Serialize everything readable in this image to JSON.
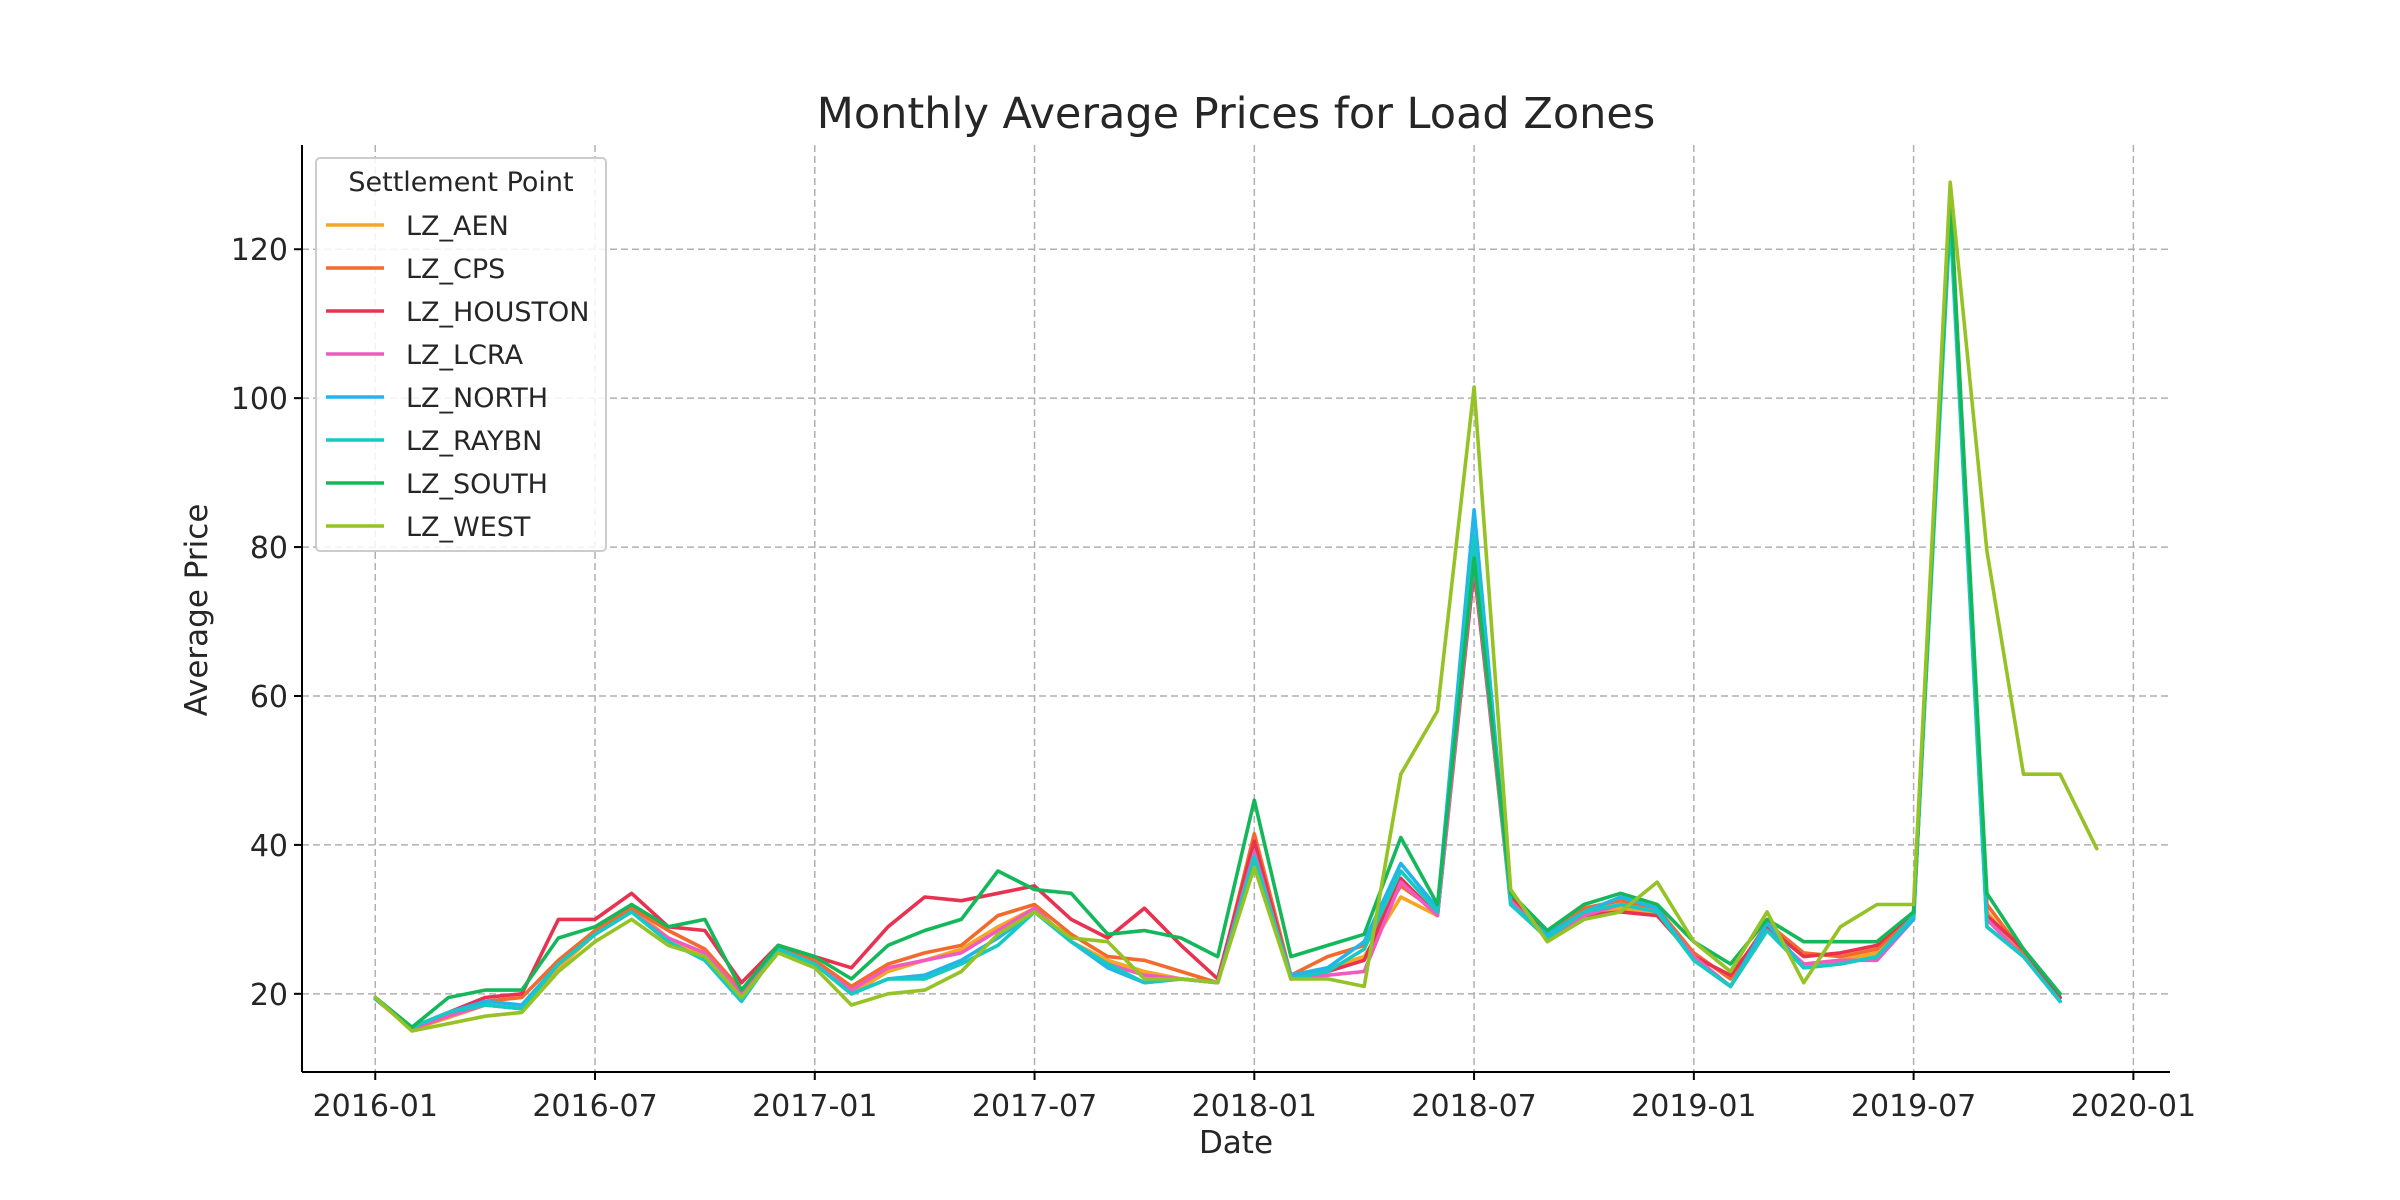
{
  "chart_data": {
    "type": "line",
    "title": "Monthly Average Prices for Load Zones",
    "xlabel": "Date",
    "ylabel": "Average Price",
    "xlim": [
      "2015-11",
      "2020-02"
    ],
    "ylim": [
      9.5,
      134
    ],
    "grid": true,
    "legend": {
      "title": "Settlement Point",
      "placement": "top-left"
    },
    "x_ticks": [
      "2016-01",
      "2016-07",
      "2017-01",
      "2017-07",
      "2018-01",
      "2018-07",
      "2019-01",
      "2019-07",
      "2020-01"
    ],
    "y_ticks": [
      20,
      40,
      60,
      80,
      100,
      120
    ],
    "x": [
      "2016-01",
      "2016-02",
      "2016-03",
      "2016-04",
      "2016-05",
      "2016-06",
      "2016-07",
      "2016-08",
      "2016-09",
      "2016-10",
      "2016-11",
      "2016-12",
      "2017-01",
      "2017-02",
      "2017-03",
      "2017-04",
      "2017-05",
      "2017-06",
      "2017-07",
      "2017-08",
      "2017-09",
      "2017-10",
      "2017-11",
      "2017-12",
      "2018-01",
      "2018-02",
      "2018-03",
      "2018-04",
      "2018-05",
      "2018-06",
      "2018-07",
      "2018-08",
      "2018-09",
      "2018-10",
      "2018-11",
      "2018-12",
      "2019-01",
      "2019-02",
      "2019-03",
      "2019-04",
      "2019-05",
      "2019-06",
      "2019-07",
      "2019-08",
      "2019-09",
      "2019-10",
      "2019-11",
      "2019-12"
    ],
    "series": [
      {
        "name": "LZ_AEN",
        "color": "#f5a623",
        "values": [
          19.3,
          15.2,
          16.8,
          18.5,
          18.0,
          23.5,
          28.0,
          31.5,
          27.5,
          25.0,
          20.0,
          26.0,
          24.0,
          20.0,
          23.0,
          24.5,
          26.0,
          29.0,
          31.5,
          27.0,
          24.5,
          23.0,
          22.0,
          21.5,
          39.0,
          22.0,
          23.5,
          25.0,
          33.0,
          30.5,
          78.0,
          32.0,
          27.5,
          30.5,
          31.5,
          30.5,
          25.0,
          21.0,
          28.5,
          24.0,
          24.5,
          25.5,
          30.0,
          128.0,
          31.0,
          25.0,
          19.5,
          null
        ]
      },
      {
        "name": "LZ_CPS",
        "color": "#f26a2c",
        "values": [
          19.5,
          15.3,
          17.0,
          19.0,
          19.5,
          24.5,
          28.5,
          31.5,
          28.5,
          26.0,
          20.5,
          26.5,
          24.5,
          21.0,
          24.0,
          25.5,
          26.5,
          30.5,
          32.0,
          28.0,
          25.0,
          24.5,
          23.0,
          21.5,
          41.5,
          22.5,
          25.0,
          26.5,
          34.5,
          31.0,
          79.0,
          33.5,
          28.0,
          31.5,
          32.5,
          31.5,
          25.5,
          22.0,
          29.5,
          25.5,
          25.0,
          26.0,
          30.5,
          127.0,
          32.0,
          25.5,
          19.5,
          null
        ]
      },
      {
        "name": "LZ_HOUSTON",
        "color": "#e8324f",
        "values": [
          19.5,
          15.5,
          17.5,
          19.5,
          20.0,
          30.0,
          30.0,
          33.5,
          29.0,
          28.5,
          21.5,
          26.5,
          25.0,
          23.5,
          29.0,
          33.0,
          32.5,
          33.5,
          34.5,
          30.0,
          27.5,
          31.5,
          26.5,
          22.0,
          40.5,
          22.0,
          23.0,
          24.5,
          35.5,
          30.5,
          77.0,
          33.0,
          28.0,
          30.5,
          31.0,
          30.5,
          25.0,
          22.5,
          29.0,
          25.0,
          25.5,
          26.5,
          31.0,
          126.0,
          30.5,
          26.0,
          19.5,
          null
        ]
      },
      {
        "name": "LZ_LCRA",
        "color": "#f05bc2",
        "values": [
          19.5,
          15.4,
          17.0,
          18.5,
          18.0,
          24.0,
          28.0,
          31.0,
          27.5,
          25.5,
          20.0,
          26.0,
          24.0,
          20.5,
          23.5,
          24.5,
          25.5,
          28.5,
          31.5,
          27.0,
          24.0,
          22.5,
          22.0,
          21.5,
          39.0,
          22.0,
          22.5,
          23.0,
          35.0,
          30.5,
          78.0,
          32.5,
          27.5,
          30.5,
          32.0,
          31.0,
          25.0,
          21.0,
          28.5,
          24.0,
          24.5,
          24.5,
          30.0,
          127.0,
          30.0,
          25.0,
          19.0,
          null
        ]
      },
      {
        "name": "LZ_NORTH",
        "color": "#21b5ea",
        "values": [
          19.3,
          15.5,
          17.5,
          19.0,
          18.5,
          24.0,
          28.0,
          31.0,
          27.0,
          24.5,
          19.0,
          26.0,
          24.0,
          20.0,
          22.0,
          22.5,
          24.5,
          27.5,
          31.0,
          27.0,
          23.5,
          21.5,
          22.0,
          21.5,
          38.0,
          22.5,
          23.5,
          27.0,
          37.5,
          31.5,
          85.0,
          32.0,
          28.0,
          31.0,
          33.0,
          31.5,
          24.5,
          21.0,
          29.5,
          23.5,
          24.0,
          25.0,
          30.0,
          126.0,
          29.0,
          25.0,
          19.0,
          null
        ]
      },
      {
        "name": "LZ_RAYBN",
        "color": "#17c9c3",
        "values": [
          19.5,
          15.5,
          17.5,
          18.5,
          18.0,
          24.0,
          28.0,
          31.0,
          27.0,
          24.5,
          19.0,
          26.0,
          24.0,
          20.0,
          22.0,
          22.0,
          24.0,
          26.5,
          31.0,
          27.0,
          24.0,
          21.5,
          22.0,
          21.5,
          38.5,
          22.0,
          23.0,
          26.0,
          36.5,
          31.0,
          81.5,
          32.0,
          27.5,
          31.0,
          32.0,
          31.0,
          24.5,
          21.0,
          28.5,
          23.5,
          24.0,
          25.0,
          30.5,
          124.0,
          29.0,
          25.0,
          19.0,
          null
        ]
      },
      {
        "name": "LZ_SOUTH",
        "color": "#14b85a",
        "values": [
          19.5,
          15.5,
          19.5,
          20.5,
          20.5,
          27.5,
          29.0,
          32.0,
          29.0,
          30.0,
          20.5,
          26.5,
          25.0,
          22.0,
          26.5,
          28.5,
          30.0,
          36.5,
          34.0,
          33.5,
          28.0,
          28.5,
          27.5,
          25.0,
          46.0,
          25.0,
          26.5,
          28.0,
          41.0,
          32.0,
          78.5,
          33.5,
          28.5,
          32.0,
          33.5,
          32.0,
          27.0,
          24.0,
          30.0,
          27.0,
          27.0,
          27.0,
          31.0,
          127.0,
          33.5,
          26.0,
          20.0,
          null
        ]
      },
      {
        "name": "LZ_WEST",
        "color": "#95c325",
        "values": [
          19.5,
          15.0,
          16.0,
          17.0,
          17.5,
          23.0,
          27.0,
          30.0,
          26.5,
          25.0,
          19.5,
          25.5,
          23.5,
          18.5,
          20.0,
          20.5,
          23.0,
          28.0,
          31.0,
          27.5,
          27.0,
          22.0,
          22.0,
          21.5,
          37.0,
          22.0,
          22.0,
          21.0,
          49.5,
          58.0,
          101.5,
          34.0,
          27.0,
          30.0,
          31.0,
          35.0,
          27.0,
          23.0,
          31.0,
          21.5,
          29.0,
          32.0,
          32.0,
          129.0,
          79.5,
          49.5,
          49.5,
          39.5
        ]
      }
    ]
  }
}
